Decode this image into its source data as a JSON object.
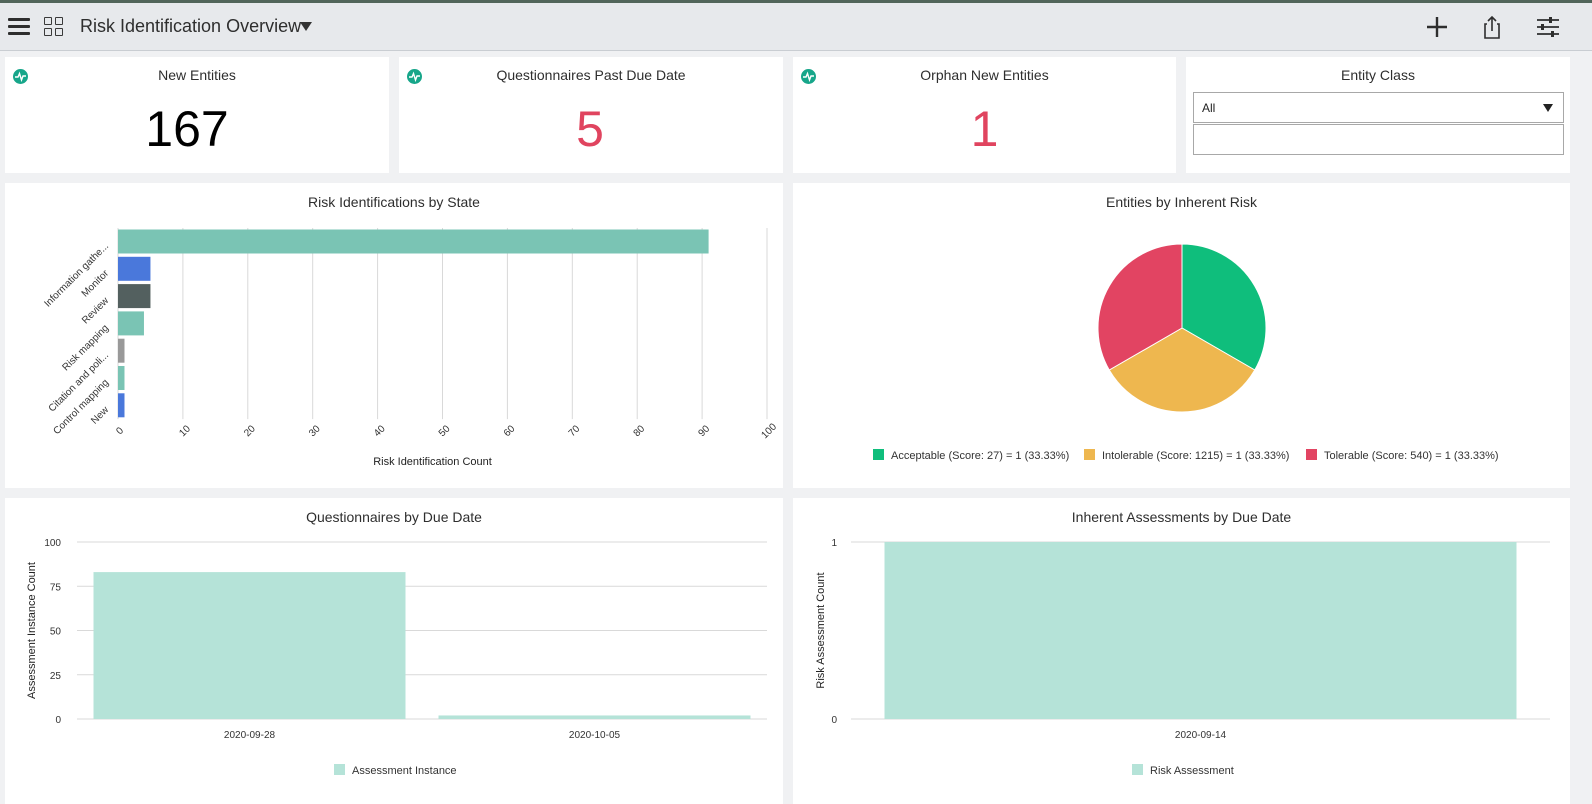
{
  "header": {
    "title": "Risk Identification Overview"
  },
  "widgets": {
    "new_entities": {
      "title": "New Entities",
      "value": "167",
      "color": "#000000"
    },
    "questionnaires_past_due": {
      "title": "Questionnaires Past Due Date",
      "value": "5",
      "color": "#e0445f"
    },
    "orphan_new_entities": {
      "title": "Orphan New Entities",
      "value": "1",
      "color": "#e0445f"
    },
    "entity_class": {
      "title": "Entity Class",
      "selected": "All",
      "text_value": ""
    }
  },
  "risk_by_state": {
    "title": "Risk Identifications by State",
    "chart_data": {
      "type": "bar",
      "orientation": "horizontal",
      "categories": [
        "Information gathe...",
        "Monitor",
        "Review",
        "Risk mapping",
        "Citation and poli...",
        "Control mapping",
        "New"
      ],
      "values": [
        91,
        5,
        5,
        4,
        1,
        1,
        1
      ],
      "colors": [
        "#7ac4b4",
        "#4a78db",
        "#53605f",
        "#7ac4b4",
        "#999999",
        "#7ac4b4",
        "#4a78db"
      ],
      "xlabel": "Risk Identification Count",
      "xlim": [
        0,
        100
      ],
      "xticks": [
        0,
        10,
        20,
        30,
        40,
        50,
        60,
        70,
        80,
        90,
        100
      ],
      "grid": true
    }
  },
  "inherent_risk": {
    "title": "Entities by Inherent Risk",
    "chart_data": {
      "type": "pie",
      "slices": [
        {
          "label": "Acceptable (Score: 27) = 1 (33.33%)",
          "value": 1,
          "color": "#0fbe7c"
        },
        {
          "label": "Intolerable (Score: 1215) = 1 (33.33%)",
          "value": 1,
          "color": "#eeb74f"
        },
        {
          "label": "Tolerable (Score: 540) = 1 (33.33%)",
          "value": 1,
          "color": "#e24462"
        }
      ],
      "legend": "bottom"
    }
  },
  "questionnaires_by_due": {
    "title": "Questionnaires by Due Date",
    "chart_data": {
      "type": "bar",
      "categories": [
        "2020-09-28",
        "2020-10-05"
      ],
      "series": [
        {
          "name": "Assessment Instance",
          "values": [
            83,
            2
          ],
          "color": "#b5e3d8"
        }
      ],
      "ylabel": "Assessment Instance Count",
      "ylim": [
        0,
        100
      ],
      "yticks": [
        0,
        25,
        50,
        75,
        100
      ],
      "grid": true,
      "legend": "bottom"
    }
  },
  "inherent_by_due": {
    "title": "Inherent Assessments by Due Date",
    "chart_data": {
      "type": "bar",
      "categories": [
        "2020-09-14"
      ],
      "series": [
        {
          "name": "Risk Assessment",
          "values": [
            1
          ],
          "color": "#b5e3d8"
        }
      ],
      "ylabel": "Risk Assessment Count",
      "ylim": [
        0,
        1
      ],
      "yticks": [
        0,
        1
      ],
      "grid": true,
      "legend": "bottom"
    }
  }
}
